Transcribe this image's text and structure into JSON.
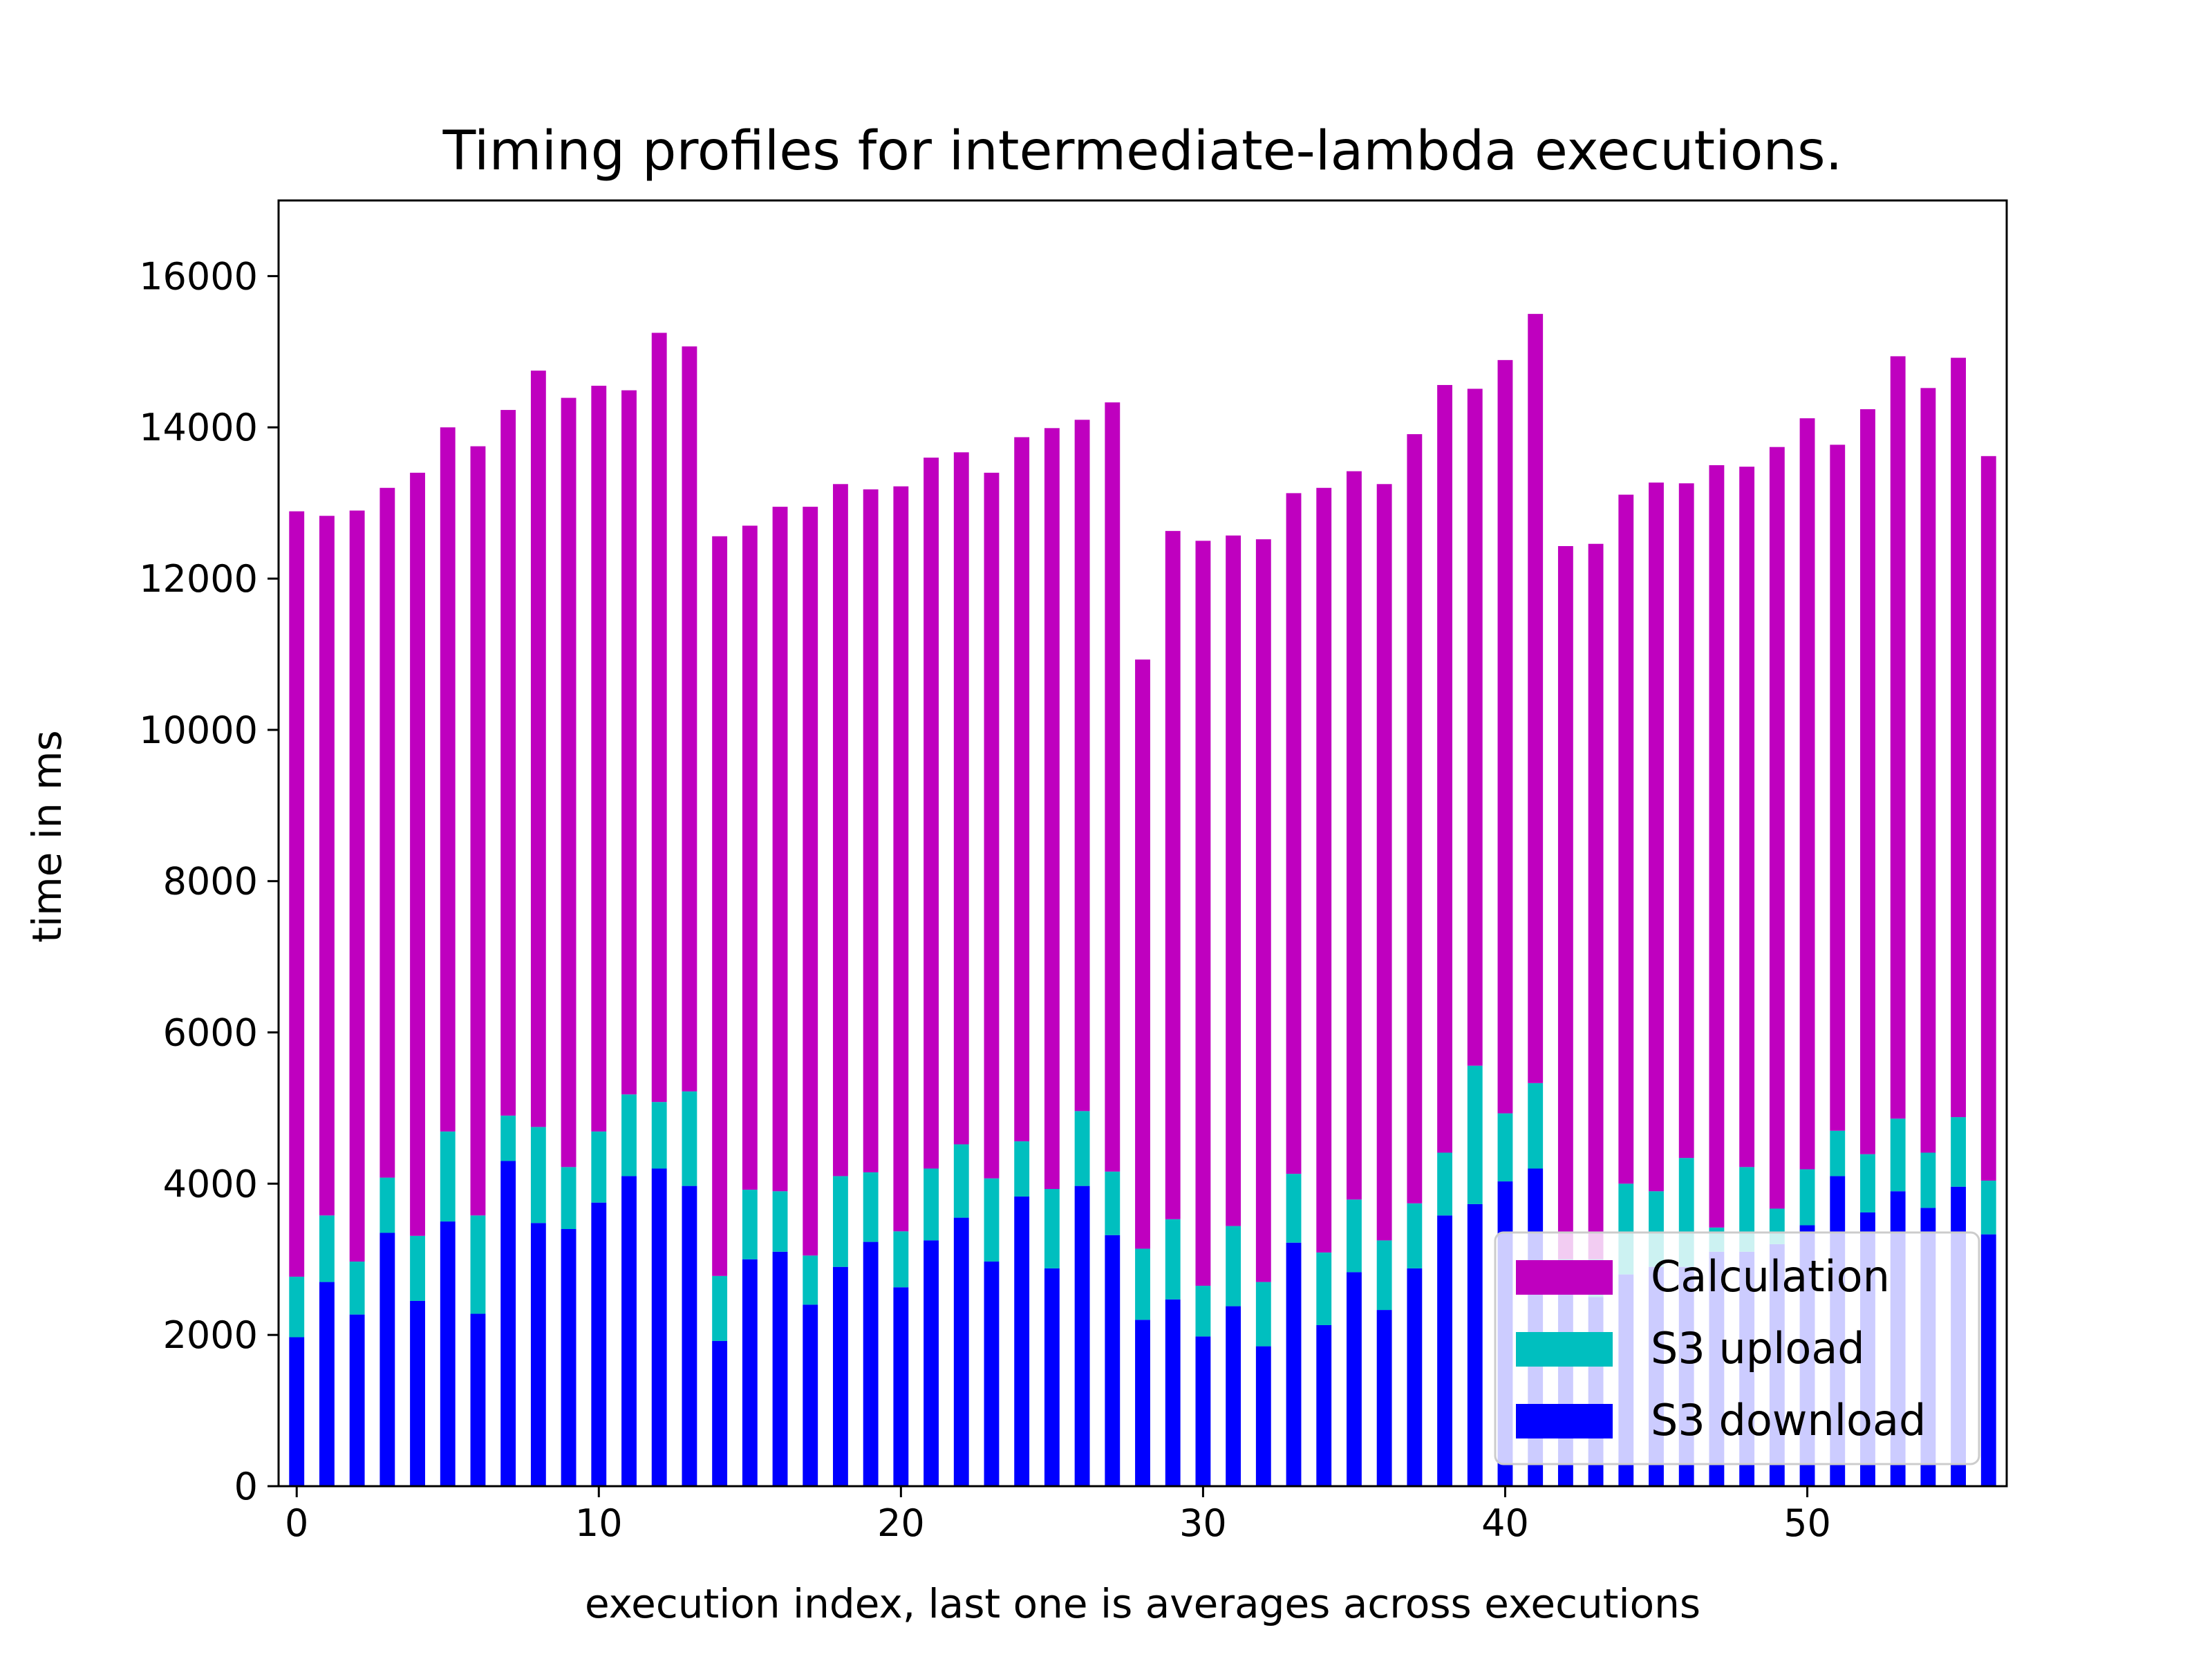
{
  "chart_data": {
    "type": "bar",
    "stacked": true,
    "title": "Timing profiles for intermediate-lambda executions.",
    "xlabel": "execution index, last one is averages across executions",
    "ylabel": "time in ms",
    "xlim": [
      -0.6,
      56.6
    ],
    "ylim": [
      0,
      17000
    ],
    "xticks": [
      0,
      10,
      20,
      30,
      40,
      50
    ],
    "yticks": [
      0,
      2000,
      4000,
      6000,
      8000,
      10000,
      12000,
      14000,
      16000
    ],
    "grid": false,
    "legend_position": "lower-right",
    "x": [
      0,
      1,
      2,
      3,
      4,
      5,
      6,
      7,
      8,
      9,
      10,
      11,
      12,
      13,
      14,
      15,
      16,
      17,
      18,
      19,
      20,
      21,
      22,
      23,
      24,
      25,
      26,
      27,
      28,
      29,
      30,
      31,
      32,
      33,
      34,
      35,
      36,
      37,
      38,
      39,
      40,
      41,
      42,
      43,
      44,
      45,
      46,
      47,
      48,
      49,
      50,
      51,
      52,
      53,
      54,
      55,
      56
    ],
    "series": [
      {
        "name": "S3 download",
        "color": "#0000ff",
        "values": [
          1970,
          2700,
          2270,
          3350,
          2450,
          3500,
          2280,
          4300,
          3480,
          3400,
          3750,
          4100,
          4200,
          3970,
          1920,
          3000,
          3100,
          2400,
          2900,
          3230,
          2630,
          3250,
          3550,
          2970,
          3830,
          2880,
          3970,
          3320,
          2200,
          2470,
          1980,
          2380,
          1850,
          3220,
          2130,
          2830,
          2330,
          2880,
          3580,
          3730,
          4030,
          4200,
          2600,
          2500,
          2800,
          2900,
          2900,
          3100,
          3100,
          3200,
          3450,
          4100,
          3620,
          3900,
          3680,
          3960,
          3330
        ]
      },
      {
        "name": "S3 upload",
        "color": "#00bfbf",
        "values": [
          800,
          880,
          700,
          730,
          860,
          1190,
          1300,
          600,
          1270,
          820,
          940,
          1080,
          880,
          1250,
          860,
          920,
          800,
          650,
          1200,
          920,
          740,
          950,
          970,
          1100,
          730,
          1050,
          990,
          840,
          940,
          1060,
          670,
          1060,
          850,
          910,
          960,
          960,
          920,
          860,
          830,
          1830,
          900,
          1130,
          400,
          500,
          1200,
          1000,
          1440,
          320,
          1120,
          470,
          740,
          600,
          770,
          960,
          730,
          920,
          710
        ]
      },
      {
        "name": "Calculation",
        "color": "#bf00bf",
        "values": [
          10120,
          9250,
          9930,
          9120,
          10090,
          9310,
          10170,
          9330,
          10000,
          10170,
          9860,
          9310,
          10170,
          9850,
          9780,
          8780,
          9050,
          9900,
          9150,
          9030,
          9850,
          9400,
          9150,
          9330,
          9310,
          10060,
          9140,
          10170,
          7790,
          9100,
          9850,
          9130,
          9820,
          9000,
          10110,
          9630,
          10000,
          10170,
          10150,
          8950,
          9960,
          10170,
          9430,
          9460,
          9110,
          9370,
          8920,
          10080,
          9260,
          10070,
          9930,
          9070,
          9850,
          10080,
          10110,
          10040,
          9580
        ]
      }
    ],
    "legend": [
      "Calculation",
      "S3 upload",
      "S3 download"
    ]
  }
}
